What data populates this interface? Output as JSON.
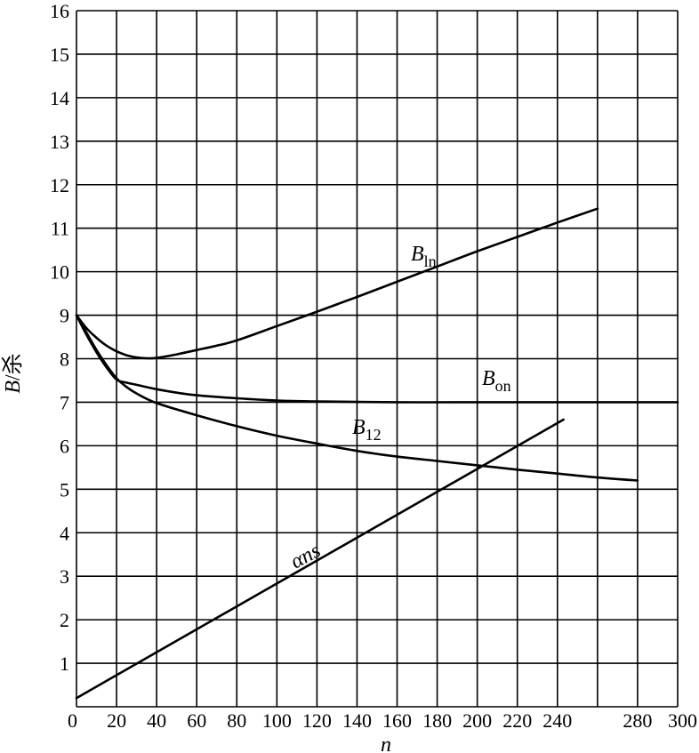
{
  "chart_data": {
    "type": "line",
    "xlabel": "n",
    "ylabel_main": "B",
    "ylabel_rest": "/杀",
    "xlim": [
      0,
      300
    ],
    "ylim": [
      0,
      16
    ],
    "grid": true,
    "x_ticks": [
      0,
      20,
      40,
      60,
      80,
      100,
      120,
      140,
      160,
      180,
      200,
      220,
      240,
      280,
      300
    ],
    "x_tick_labels": [
      "0",
      "20",
      "40",
      "60",
      "80",
      "100",
      "120",
      "140",
      "160",
      "180",
      "200",
      "220",
      "240",
      "280",
      "300"
    ],
    "y_ticks": [
      0,
      1,
      2,
      3,
      4,
      5,
      6,
      7,
      8,
      9,
      10,
      11,
      12,
      13,
      14,
      15,
      16
    ],
    "y_tick_labels": [
      "",
      "1",
      "2",
      "3",
      "4",
      "5",
      "6",
      "7",
      "8",
      "9",
      "10",
      "11",
      "12",
      "13",
      "14",
      "15",
      "16"
    ],
    "series": [
      {
        "name": "B",
        "sub": "ln",
        "x": [
          0,
          5,
          10,
          15,
          20,
          25,
          30,
          35,
          40,
          50,
          60,
          70,
          80,
          100,
          120,
          140,
          160,
          180,
          200,
          220,
          240,
          260
        ],
        "y": [
          9.0,
          8.7,
          8.48,
          8.3,
          8.17,
          8.08,
          8.03,
          8.01,
          8.02,
          8.1,
          8.2,
          8.3,
          8.42,
          8.75,
          9.08,
          9.42,
          9.77,
          10.12,
          10.47,
          10.8,
          11.13,
          11.45
        ]
      },
      {
        "name": "B",
        "sub": "on",
        "x": [
          0,
          5,
          10,
          15,
          20,
          25,
          30,
          40,
          50,
          60,
          80,
          100,
          120,
          160,
          200,
          250,
          300
        ],
        "y": [
          9.0,
          8.55,
          8.15,
          7.8,
          7.52,
          7.45,
          7.4,
          7.3,
          7.22,
          7.16,
          7.09,
          7.04,
          7.02,
          7.0,
          7.0,
          7.0,
          7.0
        ]
      },
      {
        "name": "B",
        "sub": "12",
        "x": [
          0,
          5,
          10,
          15,
          20,
          25,
          30,
          40,
          60,
          80,
          100,
          120,
          140,
          160,
          180,
          200,
          220,
          240,
          260,
          280
        ],
        "y": [
          9.0,
          8.6,
          8.2,
          7.85,
          7.55,
          7.35,
          7.2,
          6.98,
          6.7,
          6.45,
          6.23,
          6.05,
          5.88,
          5.75,
          5.65,
          5.55,
          5.45,
          5.36,
          5.27,
          5.2
        ]
      },
      {
        "name": "αns",
        "sub": "",
        "x": [
          0,
          243
        ],
        "y": [
          0.2,
          6.6
        ]
      }
    ]
  }
}
